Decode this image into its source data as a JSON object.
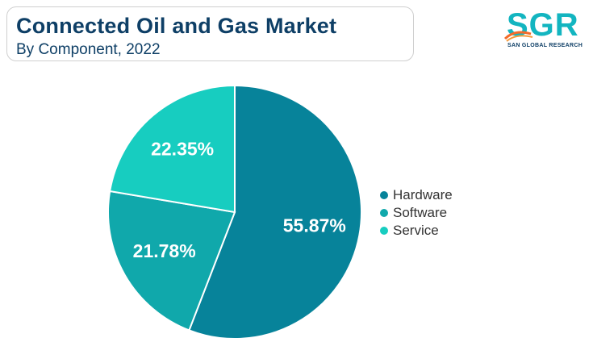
{
  "header": {
    "title": "Connected Oil and Gas Market",
    "subtitle": "By Component, 2022"
  },
  "logo": {
    "letters": "SGR",
    "tagline": "SAN GLOBAL RESEARCH"
  },
  "chart_data": {
    "type": "pie",
    "start_angle_deg": 0,
    "direction": "clockwise",
    "slices": [
      {
        "name": "Hardware",
        "value": 55.87,
        "label": "55.87%",
        "color": "#07839a"
      },
      {
        "name": "Software",
        "value": 21.78,
        "label": "21.78%",
        "color": "#10a8ab"
      },
      {
        "name": "Service",
        "value": 22.35,
        "label": "22.35%",
        "color": "#17cdc0"
      }
    ],
    "legend_position": "right"
  }
}
